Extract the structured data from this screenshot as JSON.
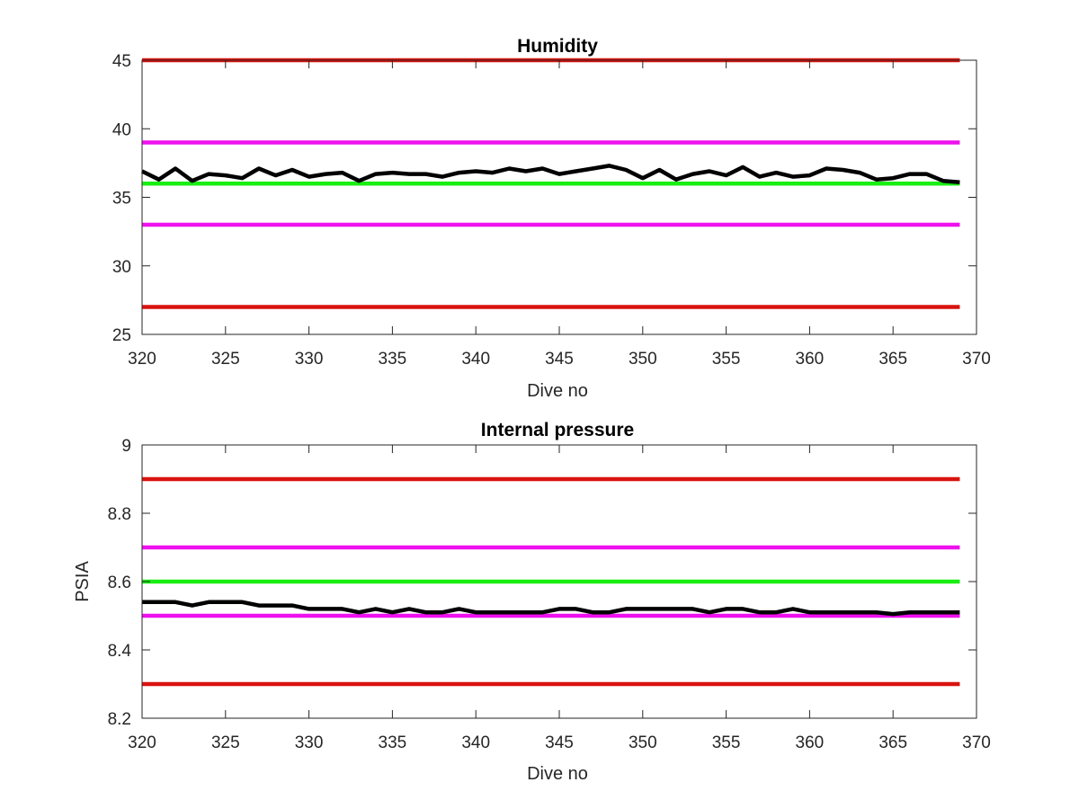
{
  "chart_data": [
    {
      "type": "line",
      "title": "Humidity",
      "xlabel": "Dive no",
      "ylabel": "",
      "xlim": [
        320,
        370
      ],
      "ylim": [
        25,
        45
      ],
      "xticks": [
        320,
        325,
        330,
        335,
        340,
        345,
        350,
        355,
        360,
        365,
        370
      ],
      "yticks": [
        25,
        30,
        35,
        40,
        45
      ],
      "grid": false,
      "legend": "none",
      "reference_lines": [
        {
          "y": 45,
          "color": "#d9130f"
        },
        {
          "y": 39,
          "color": "#ee10ee"
        },
        {
          "y": 36,
          "color": "#18ee12"
        },
        {
          "y": 33,
          "color": "#ee10ee"
        },
        {
          "y": 27,
          "color": "#d9130f"
        }
      ],
      "series": [
        {
          "color": "#000000",
          "x": [
            320,
            321,
            322,
            323,
            324,
            325,
            326,
            327,
            328,
            329,
            330,
            331,
            332,
            333,
            334,
            335,
            336,
            337,
            338,
            339,
            340,
            341,
            342,
            343,
            344,
            345,
            346,
            347,
            348,
            349,
            350,
            351,
            352,
            353,
            354,
            355,
            356,
            357,
            358,
            359,
            360,
            361,
            362,
            363,
            364,
            365,
            366,
            367,
            368,
            369
          ],
          "y": [
            36.9,
            36.3,
            37.1,
            36.2,
            36.7,
            36.6,
            36.4,
            37.1,
            36.6,
            37.0,
            36.5,
            36.7,
            36.8,
            36.2,
            36.7,
            36.8,
            36.7,
            36.7,
            36.5,
            36.8,
            36.9,
            36.8,
            37.1,
            36.9,
            37.1,
            36.7,
            36.9,
            37.1,
            37.3,
            37.0,
            36.4,
            37.0,
            36.3,
            36.7,
            36.9,
            36.6,
            37.2,
            36.5,
            36.8,
            36.5,
            36.6,
            37.1,
            37.0,
            36.8,
            36.3,
            36.4,
            36.7,
            36.7,
            36.2,
            36.1
          ]
        }
      ]
    },
    {
      "type": "line",
      "title": "Internal pressure",
      "xlabel": "Dive no",
      "ylabel": "PSIA",
      "xlim": [
        320,
        370
      ],
      "ylim": [
        8.2,
        9
      ],
      "xticks": [
        320,
        325,
        330,
        335,
        340,
        345,
        350,
        355,
        360,
        365,
        370
      ],
      "yticks": [
        8.2,
        8.4,
        8.6,
        8.8,
        9
      ],
      "grid": false,
      "legend": "none",
      "reference_lines": [
        {
          "y": 8.9,
          "color": "#d9130f"
        },
        {
          "y": 8.7,
          "color": "#ee10ee"
        },
        {
          "y": 8.6,
          "color": "#18ee12"
        },
        {
          "y": 8.5,
          "color": "#ee10ee"
        },
        {
          "y": 8.3,
          "color": "#d9130f"
        }
      ],
      "series": [
        {
          "color": "#000000",
          "x": [
            320,
            321,
            322,
            323,
            324,
            325,
            326,
            327,
            328,
            329,
            330,
            331,
            332,
            333,
            334,
            335,
            336,
            337,
            338,
            339,
            340,
            341,
            342,
            343,
            344,
            345,
            346,
            347,
            348,
            349,
            350,
            351,
            352,
            353,
            354,
            355,
            356,
            357,
            358,
            359,
            360,
            361,
            362,
            363,
            364,
            365,
            366,
            367,
            368,
            369
          ],
          "y": [
            8.54,
            8.54,
            8.54,
            8.53,
            8.54,
            8.54,
            8.54,
            8.53,
            8.53,
            8.53,
            8.52,
            8.52,
            8.52,
            8.51,
            8.52,
            8.51,
            8.52,
            8.51,
            8.51,
            8.52,
            8.51,
            8.51,
            8.51,
            8.51,
            8.51,
            8.52,
            8.52,
            8.51,
            8.51,
            8.52,
            8.52,
            8.52,
            8.52,
            8.52,
            8.51,
            8.52,
            8.52,
            8.51,
            8.51,
            8.52,
            8.51,
            8.51,
            8.51,
            8.51,
            8.51,
            8.505,
            8.51,
            8.51,
            8.51,
            8.51
          ]
        }
      ]
    }
  ]
}
